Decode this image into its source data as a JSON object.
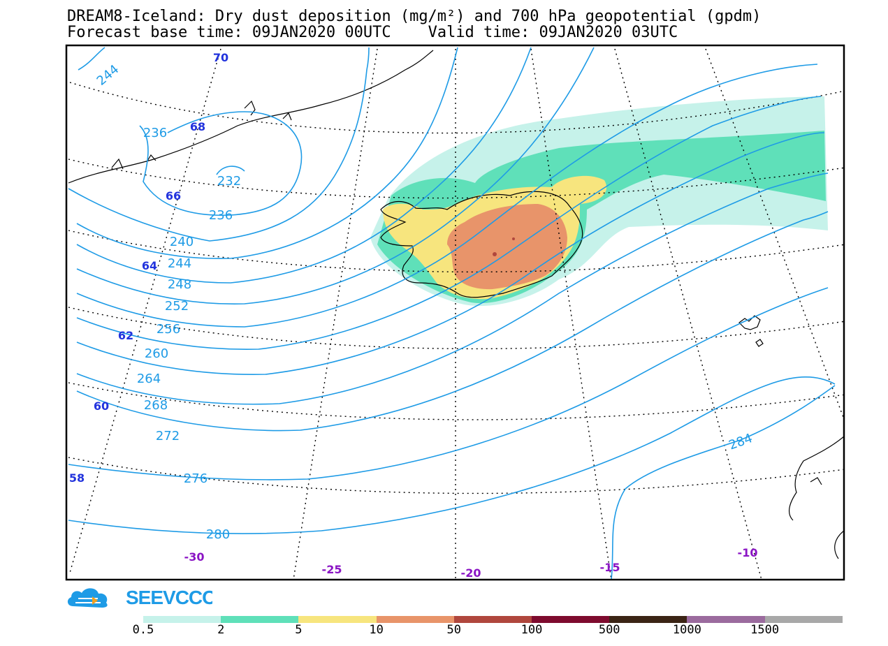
{
  "title": {
    "line1": "DREAM8-Iceland: Dry dust deposition (mg/m²) and 700 hPa geopotential (gpdm)",
    "forecast_base": "Forecast base time: 09JAN2020 00UTC",
    "valid_time": "Valid time: 09JAN2020 03UTC"
  },
  "contour_labels": [
    "244",
    "236",
    "232",
    "236",
    "240",
    "244",
    "248",
    "252",
    "256",
    "260",
    "264",
    "268",
    "272",
    "276",
    "280",
    "284"
  ],
  "lat_labels": [
    "70",
    "68",
    "66",
    "64",
    "62",
    "60",
    "58"
  ],
  "lon_labels": [
    "-30",
    "-25",
    "-20",
    "-15",
    "-10"
  ],
  "logo_text": "SEEVCCC",
  "legend": {
    "labels": [
      "0.5",
      "2",
      "5",
      "10",
      "50",
      "100",
      "500",
      "1000",
      "1500"
    ],
    "colors": [
      "#c6f2ea",
      "#5fe0b9",
      "#f7e57e",
      "#e8946a",
      "#b0473d",
      "#7e0b2e",
      "#3b2415",
      "#9b6b9e",
      "#a8a8a8"
    ]
  },
  "colors": {
    "contour": "#1e9be6",
    "lat_label": "#2233dd",
    "lon_label": "#8a14c4",
    "dust_05": "#c6f2ea",
    "dust_2": "#5fe0b9",
    "dust_5": "#f7e57e",
    "dust_10": "#e8946a",
    "dust_50": "#b0473d",
    "logo": "#1e9be6"
  }
}
